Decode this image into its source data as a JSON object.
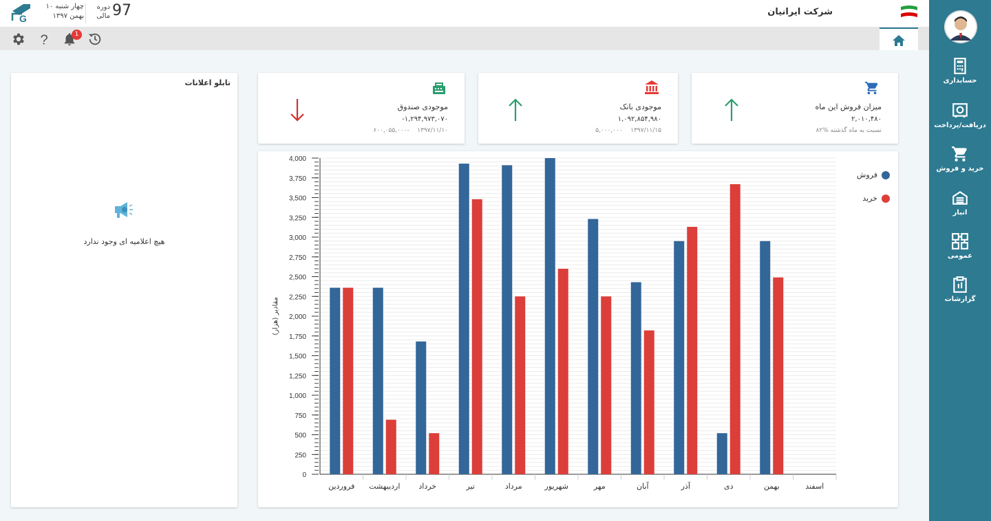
{
  "header": {
    "date_line1": "چهار شنبه ۱۰",
    "date_line2": "بهمن ۱۳۹۷",
    "period_label1": "دوره",
    "period_label2": "مالی",
    "period_value": "97",
    "company_name": "شرکت ایرانیان"
  },
  "toolbar": {
    "notification_count": "1",
    "icons": [
      "settings-icon",
      "help-icon",
      "bell-icon",
      "history-icon"
    ]
  },
  "sidebar": {
    "items": [
      {
        "label": "حسابداری",
        "icon": "accounting-icon"
      },
      {
        "label": "دریافت/پرداخت",
        "icon": "safe-icon"
      },
      {
        "label": "خرید و فروش",
        "icon": "cart-icon"
      },
      {
        "label": "انبار",
        "icon": "warehouse-icon"
      },
      {
        "label": "عمومی",
        "icon": "grid-icon"
      },
      {
        "label": "گزارشات",
        "icon": "clipboard-icon"
      }
    ]
  },
  "announcements": {
    "title": "تابلو اعلانات",
    "empty_text": "هیچ اعلامیه ای وجود ندارد"
  },
  "cards": {
    "sales": {
      "title": "میزان فروش این ماه",
      "value": "۲,۰۱۰,۴۸۰",
      "sub": "۸۲%  نسبت به ماه گذشته",
      "trend": "up"
    },
    "bank": {
      "title": "موجودی بانک",
      "value": "۱,۰۹۲,۸۵۴,۹۸۰",
      "sub_date": "۱۳۹۷/۱۱/۱۵",
      "sub_amount": "۵,۰۰۰,۰۰۰",
      "trend": "up"
    },
    "cash": {
      "title": "موجودی صندوق",
      "value": "-۱,۲۹۴,۹۷۳,۰۷۰",
      "sub_date": "۱۳۹۷/۱۱/۱۰",
      "sub_amount": "۶۰۰,۰۵۵,۰۰۰-",
      "trend": "down"
    }
  },
  "colors": {
    "sidebar": "#2d7a91",
    "sales_series": "#336699",
    "purchase_series": "#dc3e3a",
    "up_arrow": "#2a9d6e",
    "down_arrow": "#d32f2f"
  },
  "chart_data": {
    "type": "bar",
    "ylabel": "مقادیر (هزار)",
    "xlabel": "",
    "ylim": [
      0,
      4000
    ],
    "yticks": [
      "0",
      "250",
      "500",
      "750",
      "1,000",
      "1,250",
      "1,500",
      "1,750",
      "2,000",
      "2,250",
      "2,500",
      "2,750",
      "3,000",
      "3,250",
      "3,500",
      "3,750",
      "4,000"
    ],
    "legend_position": "top-right",
    "categories": [
      "فروردین",
      "اردیبهشت",
      "خرداد",
      "تیر",
      "مرداد",
      "شهریور",
      "مهر",
      "آبان",
      "آذر",
      "دی",
      "بهمن",
      "اسفند"
    ],
    "series": [
      {
        "name": "فروش",
        "color": "#336699",
        "values": [
          2360,
          2360,
          1680,
          3930,
          3910,
          4000,
          3230,
          2430,
          2950,
          520,
          2950,
          0
        ]
      },
      {
        "name": "خرید",
        "color": "#dc3e3a",
        "values": [
          2360,
          690,
          520,
          3480,
          2250,
          2600,
          2250,
          1820,
          3130,
          3670,
          2490,
          0
        ]
      }
    ]
  }
}
